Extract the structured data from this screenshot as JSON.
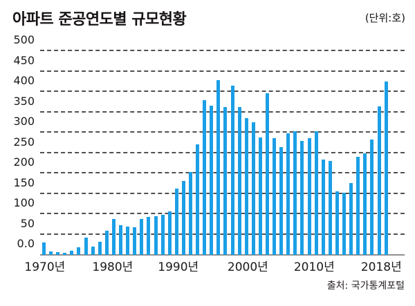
{
  "header": {
    "title": "아파트 준공연도별 규모현황",
    "unit": "(단위:호)"
  },
  "footer": {
    "source": "출처: 국가통계포털"
  },
  "chart_data": {
    "type": "bar",
    "title": "아파트 준공연도별 규모현황",
    "unit_label": "(단위:호)",
    "source": "출처: 국가통계포털",
    "bar_color": "#1b9fe6",
    "grid": "horizontal dashed",
    "ylim": [
      0,
      500
    ],
    "y_ticks": [
      "500",
      "450",
      "400",
      "350",
      "300",
      "250",
      "200",
      "150",
      "100",
      "50",
      "0.0"
    ],
    "y_tick_values": [
      500,
      450,
      400,
      350,
      300,
      250,
      200,
      150,
      100,
      50,
      0
    ],
    "categories": [
      1970,
      1971,
      1972,
      1973,
      1974,
      1975,
      1976,
      1977,
      1978,
      1979,
      1980,
      1981,
      1982,
      1983,
      1984,
      1985,
      1986,
      1987,
      1988,
      1989,
      1990,
      1991,
      1992,
      1993,
      1994,
      1995,
      1996,
      1997,
      1998,
      1999,
      2000,
      2001,
      2002,
      2003,
      2004,
      2005,
      2006,
      2007,
      2008,
      2009,
      2010,
      2011,
      2012,
      2013,
      2014,
      2015,
      2016,
      2017,
      2018,
      2019
    ],
    "values": [
      30,
      9,
      6,
      5,
      10,
      18,
      43,
      21,
      32,
      59,
      89,
      73,
      70,
      68,
      89,
      93,
      95,
      99,
      106,
      163,
      182,
      203,
      271,
      379,
      366,
      428,
      362,
      416,
      362,
      336,
      326,
      288,
      396,
      286,
      265,
      298,
      304,
      279,
      286,
      304,
      234,
      230,
      156,
      152,
      176,
      240,
      250,
      283,
      365,
      425
    ],
    "x_tick_labels": [
      {
        "label": "1970년",
        "x_pct": 1.3
      },
      {
        "label": "1980년",
        "x_pct": 19.9
      },
      {
        "label": "1990년",
        "x_pct": 37.9
      },
      {
        "label": "2000년",
        "x_pct": 57.0
      },
      {
        "label": "2010년",
        "x_pct": 75.2
      },
      {
        "label": "2018년",
        "x_pct": 93.6
      }
    ]
  }
}
